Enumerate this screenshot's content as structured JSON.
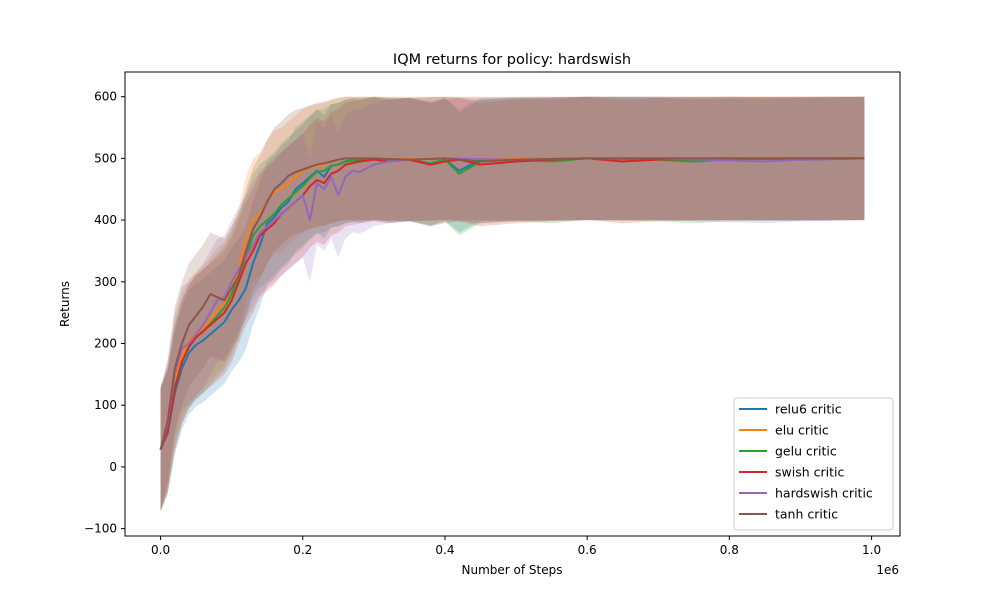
{
  "chart_data": {
    "type": "line",
    "title": "IQM returns for policy: hardswish",
    "xlabel": "Number of Steps",
    "ylabel": "Returns",
    "x_offset_label": "1e6",
    "xlim": [
      -0.05,
      1.04
    ],
    "ylim": [
      -112,
      640
    ],
    "x_ticks": [
      0.0,
      0.2,
      0.4,
      0.6,
      0.8,
      1.0
    ],
    "x_tick_labels": [
      "0.0",
      "0.2",
      "0.4",
      "0.6",
      "0.8",
      "1.0"
    ],
    "y_ticks": [
      -100,
      0,
      100,
      200,
      300,
      400,
      500,
      600
    ],
    "y_tick_labels": [
      "−100",
      "0",
      "100",
      "200",
      "300",
      "400",
      "500",
      "600"
    ],
    "legend_position": "lower-right",
    "band_half_width": 100,
    "series": [
      {
        "name": "relu6 critic",
        "color": "#1f77b4",
        "x": [
          0,
          0.01,
          0.02,
          0.03,
          0.04,
          0.05,
          0.06,
          0.07,
          0.08,
          0.09,
          0.1,
          0.11,
          0.12,
          0.13,
          0.14,
          0.15,
          0.16,
          0.17,
          0.18,
          0.19,
          0.2,
          0.21,
          0.22,
          0.23,
          0.24,
          0.25,
          0.26,
          0.27,
          0.28,
          0.3,
          0.32,
          0.35,
          0.38,
          0.4,
          0.42,
          0.45,
          0.5,
          0.55,
          0.6,
          0.7,
          0.8,
          0.9,
          0.99
        ],
        "y": [
          28,
          55,
          120,
          160,
          185,
          198,
          205,
          215,
          225,
          235,
          255,
          270,
          290,
          330,
          360,
          395,
          405,
          420,
          430,
          450,
          460,
          470,
          480,
          470,
          488,
          490,
          495,
          498,
          495,
          500,
          498,
          498,
          490,
          498,
          480,
          498,
          500,
          500,
          500,
          500,
          500,
          498,
          500
        ]
      },
      {
        "name": "elu critic",
        "color": "#ff7f0e",
        "x": [
          0,
          0.01,
          0.02,
          0.03,
          0.04,
          0.05,
          0.06,
          0.07,
          0.08,
          0.09,
          0.1,
          0.11,
          0.12,
          0.13,
          0.14,
          0.15,
          0.16,
          0.17,
          0.18,
          0.19,
          0.2,
          0.21,
          0.22,
          0.23,
          0.24,
          0.25,
          0.26,
          0.28,
          0.3,
          0.35,
          0.4,
          0.5,
          0.6,
          0.7,
          0.8,
          0.9,
          0.99
        ],
        "y": [
          28,
          65,
          140,
          180,
          205,
          215,
          225,
          240,
          255,
          265,
          290,
          320,
          370,
          400,
          410,
          430,
          445,
          450,
          460,
          470,
          480,
          485,
          488,
          490,
          495,
          498,
          500,
          500,
          500,
          500,
          500,
          500,
          500,
          500,
          500,
          500,
          500
        ]
      },
      {
        "name": "gelu critic",
        "color": "#2ca02c",
        "x": [
          0,
          0.01,
          0.02,
          0.03,
          0.04,
          0.05,
          0.06,
          0.07,
          0.08,
          0.09,
          0.1,
          0.11,
          0.12,
          0.13,
          0.14,
          0.15,
          0.16,
          0.17,
          0.18,
          0.19,
          0.2,
          0.21,
          0.22,
          0.23,
          0.24,
          0.25,
          0.26,
          0.28,
          0.3,
          0.32,
          0.35,
          0.38,
          0.4,
          0.42,
          0.45,
          0.5,
          0.55,
          0.6,
          0.7,
          0.75,
          0.8,
          0.9,
          0.99
        ],
        "y": [
          28,
          60,
          130,
          170,
          195,
          210,
          220,
          232,
          245,
          258,
          280,
          310,
          340,
          375,
          390,
          400,
          410,
          425,
          435,
          445,
          455,
          468,
          478,
          480,
          488,
          490,
          495,
          498,
          500,
          496,
          498,
          492,
          498,
          475,
          495,
          498,
          495,
          500,
          498,
          495,
          498,
          500,
          500
        ]
      },
      {
        "name": "swish critic",
        "color": "#d62728",
        "x": [
          0,
          0.01,
          0.02,
          0.03,
          0.04,
          0.05,
          0.06,
          0.07,
          0.08,
          0.09,
          0.1,
          0.11,
          0.12,
          0.13,
          0.14,
          0.15,
          0.16,
          0.17,
          0.18,
          0.19,
          0.2,
          0.21,
          0.22,
          0.23,
          0.24,
          0.25,
          0.26,
          0.28,
          0.3,
          0.32,
          0.35,
          0.38,
          0.4,
          0.42,
          0.45,
          0.5,
          0.55,
          0.6,
          0.65,
          0.7,
          0.8,
          0.9,
          0.99
        ],
        "y": [
          28,
          58,
          125,
          170,
          195,
          210,
          220,
          230,
          240,
          250,
          270,
          300,
          330,
          350,
          375,
          385,
          395,
          410,
          420,
          430,
          440,
          455,
          465,
          460,
          475,
          480,
          490,
          495,
          498,
          495,
          498,
          490,
          495,
          498,
          490,
          495,
          498,
          500,
          495,
          498,
          500,
          500,
          500
        ]
      },
      {
        "name": "hardswish critic",
        "color": "#9467bd",
        "x": [
          0,
          0.01,
          0.02,
          0.03,
          0.04,
          0.05,
          0.06,
          0.07,
          0.08,
          0.09,
          0.1,
          0.11,
          0.12,
          0.13,
          0.14,
          0.15,
          0.16,
          0.17,
          0.18,
          0.19,
          0.2,
          0.21,
          0.22,
          0.23,
          0.24,
          0.25,
          0.26,
          0.27,
          0.28,
          0.3,
          0.32,
          0.35,
          0.4,
          0.5,
          0.6,
          0.7,
          0.85,
          0.9,
          0.99
        ],
        "y": [
          28,
          70,
          150,
          192,
          200,
          215,
          230,
          250,
          270,
          275,
          300,
          320,
          340,
          360,
          380,
          390,
          400,
          410,
          420,
          430,
          440,
          400,
          460,
          450,
          470,
          440,
          470,
          480,
          478,
          490,
          495,
          498,
          500,
          498,
          500,
          500,
          495,
          498,
          500
        ]
      },
      {
        "name": "tanh critic",
        "color": "#8c564b",
        "x": [
          0,
          0.01,
          0.02,
          0.03,
          0.04,
          0.05,
          0.06,
          0.07,
          0.08,
          0.09,
          0.1,
          0.11,
          0.12,
          0.13,
          0.14,
          0.15,
          0.16,
          0.17,
          0.18,
          0.19,
          0.2,
          0.21,
          0.22,
          0.23,
          0.24,
          0.25,
          0.26,
          0.28,
          0.3,
          0.35,
          0.4,
          0.45,
          0.5,
          0.6,
          0.7,
          0.8,
          0.9,
          0.99
        ],
        "y": [
          28,
          75,
          160,
          200,
          230,
          245,
          260,
          280,
          275,
          270,
          290,
          310,
          350,
          385,
          405,
          430,
          450,
          460,
          472,
          478,
          482,
          486,
          490,
          492,
          495,
          498,
          500,
          500,
          500,
          498,
          500,
          495,
          498,
          500,
          500,
          500,
          500,
          500
        ]
      }
    ]
  }
}
